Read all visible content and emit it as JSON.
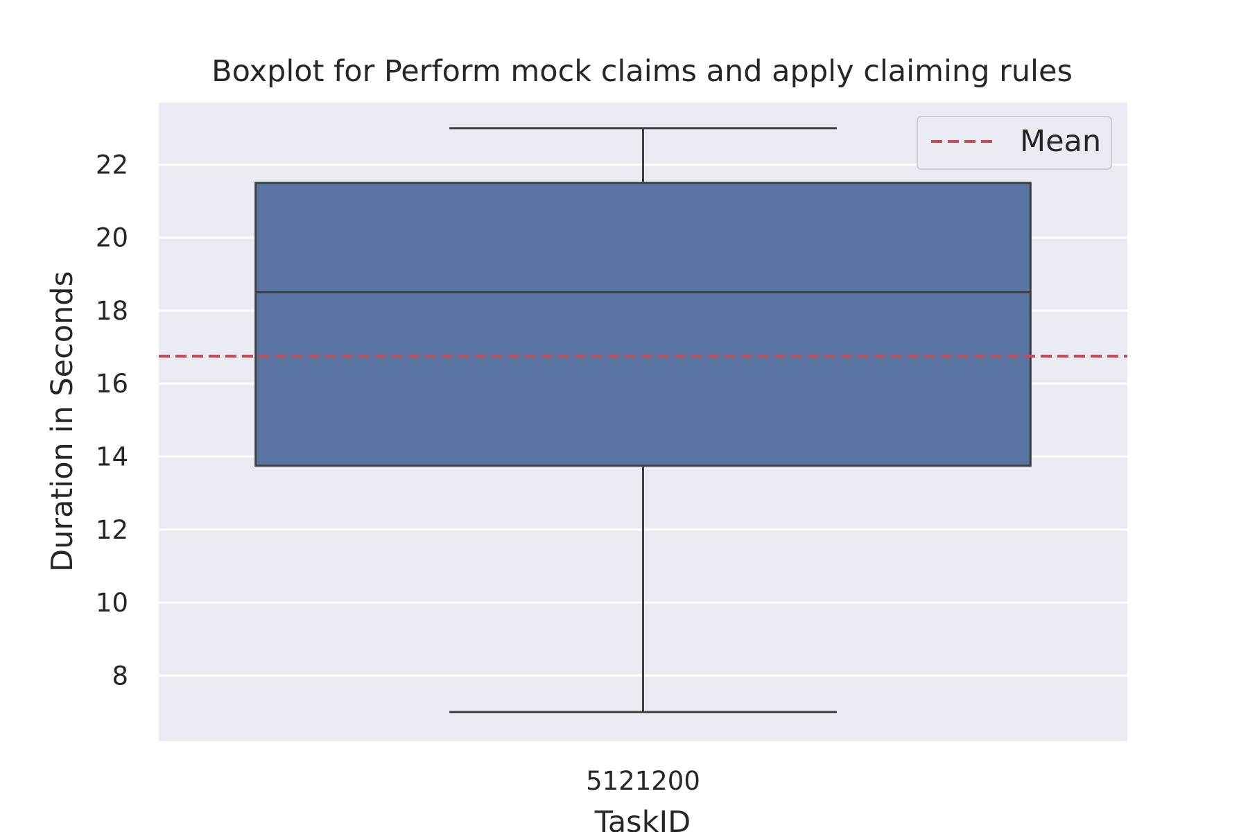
{
  "chart_data": {
    "type": "box",
    "title": "Boxplot for Perform mock claims and apply claiming rules",
    "xlabel": "TaskID",
    "ylabel": "Duration in Seconds",
    "categories": [
      "5121200"
    ],
    "boxes": [
      {
        "category": "5121200",
        "whisker_low": 7,
        "q1": 13.75,
        "median": 18.5,
        "q3": 21.5,
        "whisker_high": 23
      }
    ],
    "mean": 16.75,
    "mean_label": "Mean",
    "yticks": [
      8,
      10,
      12,
      14,
      16,
      18,
      20,
      22
    ],
    "ylim": [
      6.2,
      23.7
    ],
    "grid": true,
    "legend_position": "top-right",
    "colors": {
      "background": "#eaeaf2",
      "box_fill": "#5975a4",
      "box_edge": "#3f3f3f",
      "mean_line": "#c44e52",
      "grid": "#ffffff"
    }
  }
}
